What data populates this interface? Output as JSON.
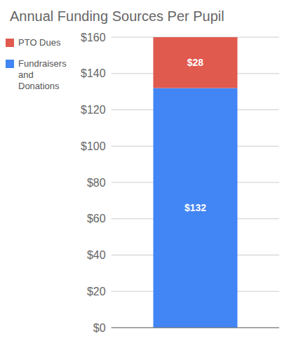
{
  "chart_data": {
    "type": "bar",
    "title": "Annual Funding Sources Per Pupil",
    "categories": [
      null
    ],
    "series": [
      {
        "name": "Fundraisers\nand\nDonations",
        "color": "#4285F4",
        "values": [
          132
        ],
        "value_labels": [
          "$132"
        ]
      },
      {
        "name": "PTO Dues",
        "color": "#E05A4E",
        "values": [
          28
        ],
        "value_labels": [
          "$28"
        ]
      }
    ],
    "stacked": true,
    "data_labels": true,
    "ylim": [
      0,
      160
    ],
    "yticks": [
      {
        "value": 0,
        "label": "$0"
      },
      {
        "value": 20,
        "label": "$20"
      },
      {
        "value": 40,
        "label": "$40"
      },
      {
        "value": 60,
        "label": "$60"
      },
      {
        "value": 80,
        "label": "$80"
      },
      {
        "value": 100,
        "label": "$100"
      },
      {
        "value": 120,
        "label": "$120"
      },
      {
        "value": 140,
        "label": "$140"
      },
      {
        "value": 160,
        "label": "$160"
      }
    ],
    "grid": true,
    "legend": "upper left",
    "tick_labels": "y"
  }
}
